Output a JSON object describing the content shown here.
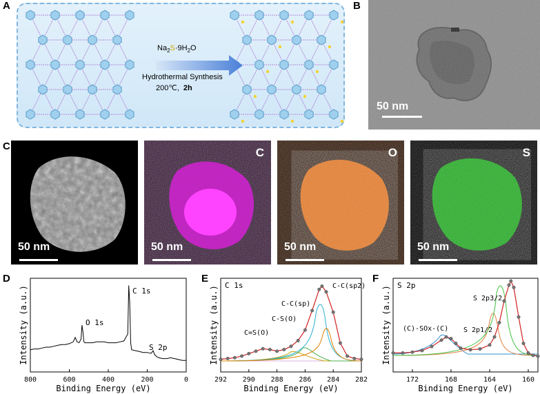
{
  "panels": {
    "A": "A",
    "B": "B",
    "C": "C",
    "D": "D",
    "E": "E",
    "F": "F"
  },
  "schematic": {
    "reagent_prefix": "Na",
    "reagent_sub2": "2",
    "reagent_s": "S",
    "reagent_mid": "·9H",
    "reagent_sub_h2o": "2",
    "reagent_o": "O",
    "method": "Hydrothermal Synthesis",
    "condition_temp": "200℃,",
    "condition_time": "2h"
  },
  "tem": {
    "scale": "50 nm"
  },
  "maps": [
    {
      "element": "",
      "scale": "50 nm",
      "color": "#ffffff"
    },
    {
      "element": "C",
      "scale": "50 nm",
      "color": "#ff33ff"
    },
    {
      "element": "O",
      "scale": "50 nm",
      "color": "#ff7a1e"
    },
    {
      "element": "S",
      "scale": "50 nm",
      "color": "#22dd22"
    }
  ],
  "chart_data": [
    {
      "type": "line",
      "panel": "D",
      "xlabel": "Binding Energy (eV)",
      "ylabel": "Intensity (a.u.)",
      "xlim": [
        800,
        0
      ],
      "xticks": [
        "800",
        "600",
        "400",
        "200",
        "0"
      ],
      "annotations": [
        "C 1s",
        "O 1s",
        "S 2p"
      ],
      "x": [
        800,
        780,
        760,
        740,
        720,
        700,
        680,
        660,
        640,
        620,
        600,
        580,
        570,
        560,
        550,
        540,
        535,
        530,
        525,
        520,
        500,
        480,
        460,
        440,
        420,
        400,
        380,
        360,
        340,
        320,
        300,
        295,
        290,
        285,
        280,
        260,
        240,
        220,
        200,
        180,
        170,
        165,
        160,
        150,
        140,
        120,
        100,
        80,
        60,
        40,
        20,
        0
      ],
      "y": [
        0.22,
        0.23,
        0.23,
        0.24,
        0.25,
        0.25,
        0.26,
        0.27,
        0.28,
        0.28,
        0.29,
        0.31,
        0.36,
        0.31,
        0.3,
        0.34,
        0.5,
        0.42,
        0.31,
        0.3,
        0.3,
        0.3,
        0.31,
        0.31,
        0.31,
        0.3,
        0.3,
        0.3,
        0.31,
        0.32,
        0.4,
        0.95,
        0.75,
        0.3,
        0.22,
        0.21,
        0.2,
        0.19,
        0.19,
        0.18,
        0.21,
        0.18,
        0.16,
        0.14,
        0.13,
        0.12,
        0.12,
        0.13,
        0.12,
        0.11,
        0.1,
        0.1
      ]
    },
    {
      "type": "scatter",
      "panel": "E",
      "title": "C 1s",
      "xlabel": "Binding Energy (eV)",
      "ylabel": "Intensity (a.u.)",
      "xlim": [
        292,
        282
      ],
      "xticks": [
        "292",
        "290",
        "288",
        "286",
        "284",
        "282"
      ],
      "annotations": [
        "C=S(O)",
        "C-S(O)",
        "C-C(sp)",
        "C-C(sp2)"
      ],
      "x": [
        292,
        291.5,
        291,
        290.5,
        290,
        289.5,
        289,
        288.5,
        288,
        287.5,
        287,
        286.5,
        286,
        285.5,
        285,
        284.8,
        284.5,
        284,
        283.5,
        283,
        282.5,
        282
      ],
      "y": [
        0.02,
        0.03,
        0.04,
        0.06,
        0.09,
        0.12,
        0.15,
        0.14,
        0.12,
        0.14,
        0.18,
        0.25,
        0.38,
        0.62,
        0.88,
        0.92,
        0.85,
        0.6,
        0.22,
        0.06,
        0.03,
        0.02
      ]
    },
    {
      "type": "scatter",
      "panel": "F",
      "title": "S 2p",
      "xlabel": "Binding Energy (eV)",
      "ylabel": "Intensity (a.u.)",
      "xlim": [
        174,
        159
      ],
      "xticks": [
        "172",
        "168",
        "164",
        "160"
      ],
      "annotations": [
        "(C)-SOx-(C)",
        "S 2p3/2",
        "S 2p1/2"
      ],
      "x": [
        174,
        173,
        172,
        171,
        170,
        169,
        168.5,
        168,
        167.5,
        167,
        166,
        165,
        164,
        163.5,
        163,
        162.5,
        162,
        161.8,
        161.5,
        161,
        160.5,
        160,
        159.5,
        159
      ],
      "y": [
        0.1,
        0.1,
        0.11,
        0.13,
        0.18,
        0.26,
        0.3,
        0.28,
        0.22,
        0.16,
        0.14,
        0.15,
        0.2,
        0.3,
        0.48,
        0.75,
        0.95,
        1.0,
        0.92,
        0.55,
        0.22,
        0.1,
        0.07,
        0.06
      ]
    }
  ]
}
